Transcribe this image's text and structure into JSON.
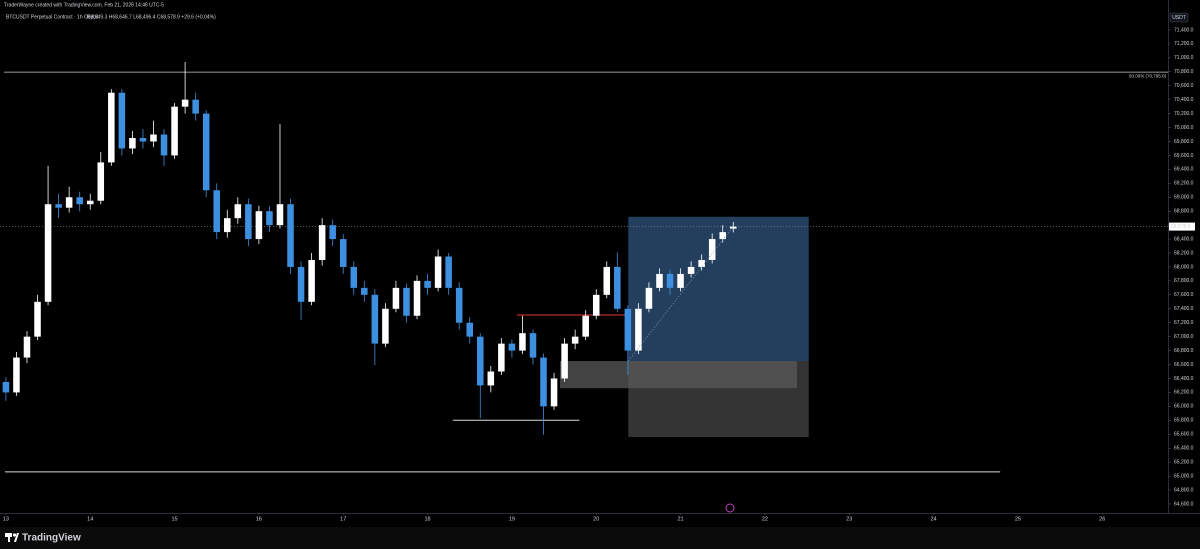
{
  "header": {
    "watermark": "TraderWayne created with TradingView.com, Feb 21, 2026 14:46 UTC-5",
    "symbol": "BTCUSDT Perpetual Contract · 1h · Bybit",
    "ohlc": "O68,549.3 H68,646.7 L68,496.4 C68,578.9 +29.6 (+0.04%)"
  },
  "chart_data": {
    "type": "candlestick",
    "currency": "USDT",
    "up_color": "#ffffff",
    "down_color": "#3d8fe0",
    "xlim": [
      12.93,
      26.78
    ],
    "xticks": [
      13,
      14,
      15,
      16,
      17,
      18,
      19,
      20,
      21,
      22,
      23,
      24,
      25,
      26
    ],
    "ylim": [
      64470,
      71830
    ],
    "yticks": [
      {
        "value": 71400,
        "label": "71,400.0"
      },
      {
        "value": 71200,
        "label": "71,200.0"
      },
      {
        "value": 71000,
        "label": "71,000.0"
      },
      {
        "value": 70800,
        "label": "70,800.0"
      },
      {
        "value": 70600,
        "label": "70,600.0"
      },
      {
        "value": 70400,
        "label": "70,400.0"
      },
      {
        "value": 70200,
        "label": "70,200.0"
      },
      {
        "value": 70000,
        "label": "70,000.0"
      },
      {
        "value": 69800,
        "label": "69,800.0"
      },
      {
        "value": 69600,
        "label": "69,600.0"
      },
      {
        "value": 69400,
        "label": "69,400.0"
      },
      {
        "value": 69200,
        "label": "69,200.0"
      },
      {
        "value": 69000,
        "label": "69,000.0"
      },
      {
        "value": 68800,
        "label": "68,800.0"
      },
      {
        "value": 68600,
        "label": "68,600.0"
      },
      {
        "value": 68400,
        "label": "68,400.0"
      },
      {
        "value": 68200,
        "label": "68,200.0"
      },
      {
        "value": 68000,
        "label": "68,000.0"
      },
      {
        "value": 67800,
        "label": "67,800.0"
      },
      {
        "value": 67600,
        "label": "67,600.0"
      },
      {
        "value": 67400,
        "label": "67,400.0"
      },
      {
        "value": 67200,
        "label": "67,200.0"
      },
      {
        "value": 67000,
        "label": "67,000.0"
      },
      {
        "value": 66800,
        "label": "66,800.0"
      },
      {
        "value": 66600,
        "label": "66,600.0"
      },
      {
        "value": 66400,
        "label": "66,400.0"
      },
      {
        "value": 66200,
        "label": "66,200.0"
      },
      {
        "value": 66000,
        "label": "66,000.0"
      },
      {
        "value": 65800,
        "label": "65,800.0"
      },
      {
        "value": 65600,
        "label": "65,600.0"
      },
      {
        "value": 65400,
        "label": "65,400.0"
      },
      {
        "value": 65200,
        "label": "65,200.0"
      },
      {
        "value": 65000,
        "label": "65,000.0"
      },
      {
        "value": 64800,
        "label": "64,800.0"
      },
      {
        "value": 64600,
        "label": "64,600.0"
      }
    ],
    "x": [
      13,
      13.125,
      13.25,
      13.375,
      13.5,
      13.625,
      13.75,
      13.875,
      14,
      14.125,
      14.25,
      14.375,
      14.5,
      14.625,
      14.75,
      14.875,
      15,
      15.125,
      15.25,
      15.375,
      15.5,
      15.625,
      15.75,
      15.875,
      16,
      16.125,
      16.25,
      16.375,
      16.5,
      16.625,
      16.75,
      16.875,
      17,
      17.125,
      17.25,
      17.375,
      17.5,
      17.625,
      17.75,
      17.875,
      18,
      18.125,
      18.25,
      18.375,
      18.5,
      18.625,
      18.75,
      18.875,
      19,
      19.125,
      19.25,
      19.375,
      19.5,
      19.625,
      19.75,
      19.875,
      20,
      20.125,
      20.25,
      20.375,
      20.5,
      20.625,
      20.75,
      20.875,
      21,
      21.125,
      21.25,
      21.375,
      21.5,
      21.625
    ],
    "ohlc": [
      [
        66350,
        66420,
        66080,
        66200
      ],
      [
        66200,
        66780,
        66150,
        66700
      ],
      [
        66700,
        67080,
        66620,
        67000
      ],
      [
        67000,
        67600,
        66950,
        67500
      ],
      [
        67500,
        69450,
        67450,
        68900
      ],
      [
        68900,
        69050,
        68700,
        68850
      ],
      [
        68850,
        69150,
        68780,
        69000
      ],
      [
        69000,
        69080,
        68800,
        68900
      ],
      [
        68900,
        69050,
        68820,
        68950
      ],
      [
        68950,
        69650,
        68900,
        69500
      ],
      [
        69500,
        70550,
        69450,
        70500
      ],
      [
        70500,
        70550,
        69600,
        69700
      ],
      [
        69700,
        69950,
        69620,
        69850
      ],
      [
        69850,
        69980,
        69700,
        69800
      ],
      [
        69800,
        70100,
        69720,
        69900
      ],
      [
        69900,
        69980,
        69450,
        69600
      ],
      [
        69600,
        70350,
        69550,
        70300
      ],
      [
        70300,
        70940,
        70200,
        70400
      ],
      [
        70400,
        70500,
        70100,
        70200
      ],
      [
        70200,
        70250,
        69000,
        69100
      ],
      [
        69100,
        69200,
        68400,
        68500
      ],
      [
        68500,
        68820,
        68420,
        68700
      ],
      [
        68700,
        69000,
        68620,
        68900
      ],
      [
        68900,
        68980,
        68300,
        68400
      ],
      [
        68400,
        68880,
        68330,
        68800
      ],
      [
        68800,
        68870,
        68500,
        68600
      ],
      [
        68600,
        70050,
        68550,
        68900
      ],
      [
        68900,
        68980,
        67900,
        68000
      ],
      [
        68000,
        68080,
        67240,
        67500
      ],
      [
        67500,
        68200,
        67450,
        68100
      ],
      [
        68100,
        68700,
        68020,
        68600
      ],
      [
        68600,
        68680,
        68300,
        68400
      ],
      [
        68400,
        68470,
        67900,
        68000
      ],
      [
        68000,
        68080,
        67600,
        67700
      ],
      [
        67700,
        67800,
        67500,
        67600
      ],
      [
        67600,
        67680,
        66590,
        66900
      ],
      [
        66900,
        67480,
        66850,
        67400
      ],
      [
        67400,
        67800,
        67350,
        67700
      ],
      [
        67700,
        67760,
        67200,
        67300
      ],
      [
        67300,
        67880,
        67250,
        67800
      ],
      [
        67800,
        67900,
        67600,
        67700
      ],
      [
        67700,
        68250,
        67650,
        68150
      ],
      [
        68150,
        68200,
        67600,
        67700
      ],
      [
        67700,
        67780,
        67100,
        67200
      ],
      [
        67200,
        67280,
        66900,
        67000
      ],
      [
        67000,
        67050,
        65830,
        66300
      ],
      [
        66300,
        66580,
        66200,
        66500
      ],
      [
        66500,
        66980,
        66450,
        66900
      ],
      [
        66900,
        66960,
        66700,
        66800
      ],
      [
        66800,
        67300,
        66750,
        67050
      ],
      [
        67050,
        67100,
        66600,
        66700
      ],
      [
        66700,
        66760,
        65590,
        66000
      ],
      [
        66000,
        66480,
        65950,
        66400
      ],
      [
        66400,
        66980,
        66350,
        66900
      ],
      [
        66900,
        67100,
        66820,
        67000
      ],
      [
        67000,
        67380,
        66950,
        67300
      ],
      [
        67300,
        67680,
        67250,
        67600
      ],
      [
        67600,
        68080,
        67550,
        68000
      ],
      [
        68000,
        68210,
        67350,
        67400
      ],
      [
        67400,
        67450,
        66450,
        66800
      ],
      [
        66800,
        67480,
        66750,
        67400
      ],
      [
        67400,
        67780,
        67350,
        67700
      ],
      [
        67700,
        67980,
        67650,
        67900
      ],
      [
        67900,
        67960,
        67600,
        67700
      ],
      [
        67700,
        67980,
        67650,
        67900
      ],
      [
        67900,
        68080,
        67850,
        68000
      ],
      [
        68000,
        68180,
        67950,
        68100
      ],
      [
        68100,
        68480,
        68050,
        68400
      ],
      [
        68400,
        68600,
        68350,
        68500
      ],
      [
        68549.3,
        68646.7,
        68496.4,
        68578.9
      ]
    ],
    "last_price": {
      "value": 68578.9,
      "label": "68,578.9"
    },
    "fib_level": {
      "value": 70795,
      "label": "50.00% (70,795.0)"
    },
    "hlines": [
      {
        "price": 65060,
        "x": [
          12.99,
          24.79
        ],
        "color": "#d9d9d9"
      },
      {
        "price": 65800,
        "x": [
          18.3,
          19.8
        ],
        "color": "#d9d9d9"
      },
      {
        "price": 67310,
        "x": [
          19.06,
          20.38
        ],
        "color": "#e53935"
      }
    ],
    "zone": {
      "x": [
        19.57,
        22.38
      ],
      "top": 66650,
      "bottom": 66260,
      "color": "#5a5a5a"
    },
    "position": {
      "x": [
        20.38,
        22.52
      ],
      "entry": 66650,
      "target": 68720,
      "stop": 65560,
      "profit_color": "#2a4a6e",
      "loss_color": "#3a3a3a"
    }
  }
}
